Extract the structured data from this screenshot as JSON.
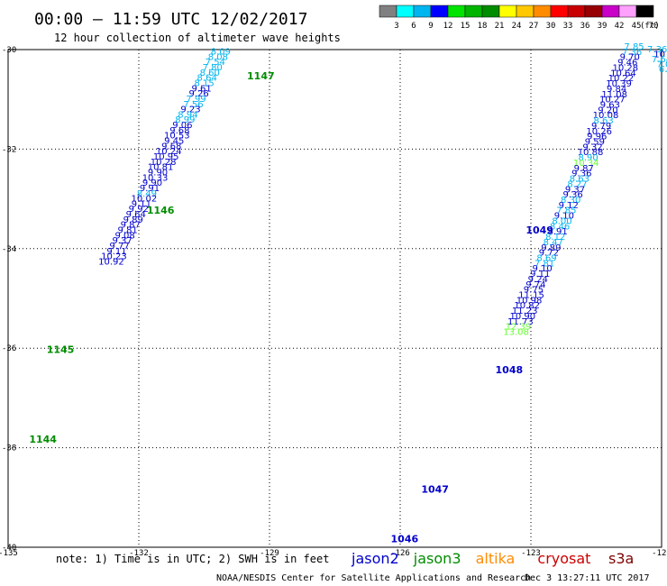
{
  "header": {
    "title": "00:00 – 11:59 UTC 12/02/2017",
    "subtitle": "12 hour collection of altimeter wave heights"
  },
  "legend": {
    "ticks": [
      "3",
      "6",
      "9",
      "12",
      "15",
      "18",
      "21",
      "24",
      "27",
      "30",
      "33",
      "36",
      "39",
      "42",
      "45",
      "70"
    ],
    "unit": "(ft)",
    "colors": [
      "#808080",
      "#00ffff",
      "#00b4f0",
      "#0000ff",
      "#00e400",
      "#00b400",
      "#008c00",
      "#ffff00",
      "#ffc800",
      "#ff8c00",
      "#ff0000",
      "#c80000",
      "#960000",
      "#c800c8",
      "#ffa0ff",
      "#000000"
    ]
  },
  "footer": {
    "note": "note: 1) Time is in UTC; 2) SWH is in feet",
    "missions": [
      {
        "name": "jason2",
        "color": "#0000cc"
      },
      {
        "name": "jason3",
        "color": "#008c00"
      },
      {
        "name": "altika",
        "color": "#ff8c00"
      },
      {
        "name": "cryosat",
        "color": "#cc0000"
      },
      {
        "name": "s3a",
        "color": "#800000"
      }
    ],
    "credit": "NOAA/NESDIS Center for Satellite Applications and Research",
    "timestamp": "Dec  3 13:27:11 UTC 2017"
  },
  "chart_data": {
    "type": "scatter",
    "xlim": [
      -135,
      -120
    ],
    "ylim": [
      -40,
      -30
    ],
    "x_ticks": [
      -135,
      -132,
      -129,
      -126,
      -123,
      -120
    ],
    "x_tick_labels": [
      "-135",
      "-132",
      "-129",
      "-126",
      "-123",
      "-120"
    ],
    "y_ticks": [
      -30,
      -32,
      -34,
      -36,
      -38,
      -40
    ],
    "y_tick_labels": [
      "-30",
      "-32",
      "-34",
      "-36",
      "-38",
      "-40"
    ],
    "grid": true,
    "colors": {
      "dark": "#0000cc",
      "light": "#00b4f0",
      "green": "#66ff33",
      "time": "#008c00",
      "time_j2": "#0000cc"
    },
    "tracks": [
      {
        "lat0": -30.1,
        "dlat": 0.1055,
        "lon0": -130.12,
        "dlon": -0.0628,
        "values": [
          "8.09",
          "8.08",
          "7.54",
          "7.80",
          "8.60",
          "8.64",
          "8.15",
          "9.61",
          "9.26",
          "7.99",
          "7.56",
          "9.23",
          "8.94",
          "8.99",
          "9.06",
          "9.68",
          "10.53",
          "9.45",
          "9.68",
          "10.24",
          "10.95",
          "10.28",
          "10.81",
          "9.90",
          "10.33",
          "9.90",
          "9.91",
          "8.49",
          "10.02",
          "9.11",
          "9.92",
          "9.64",
          "9.89",
          "9.87",
          "9.81",
          "9.08",
          "9.37",
          "9.77",
          "9.11",
          "10.23",
          "10.92"
        ],
        "value_colors": [
          "L",
          "L",
          "L",
          "L",
          "L",
          "L",
          "L",
          "D",
          "D",
          "L",
          "L",
          "D",
          "L",
          "L",
          "D",
          "D",
          "D",
          "D",
          "D",
          "D",
          "D",
          "D",
          "D",
          "D",
          "D",
          "D",
          "D",
          "L",
          "D",
          "D",
          "D",
          "D",
          "D",
          "D",
          "D",
          "D",
          "D",
          "D",
          "D",
          "D",
          "D"
        ],
        "times": [
          {
            "label": "1147",
            "lat": -30.6,
            "lon": -129.2
          },
          {
            "label": "1146",
            "lat": -33.3,
            "lon": -131.5
          },
          {
            "label": "1145",
            "lat": -36.1,
            "lon": -133.8
          },
          {
            "label": "1144",
            "lat": -37.9,
            "lon": -134.2
          }
        ]
      },
      {
        "lat0": -30.0,
        "dlat": 0.1062,
        "lon0": -120.63,
        "dlon": -0.0502,
        "values": [
          "7.85",
          "7.36",
          "9.70",
          "9.46",
          "10.28",
          "10.64",
          "10.22",
          "10.39",
          "9.84",
          "11.08",
          "10.27",
          "9.63",
          "9.20",
          "10.08",
          "8.63",
          "9.79",
          "10.26",
          "9.96",
          "9.59",
          "9.32",
          "10.88",
          "8.90",
          "10.34",
          "9.87",
          "9.36",
          "8.63",
          "8.27",
          "9.37",
          "9.36",
          "8.30",
          "9.12",
          "7.85",
          "9.10",
          "8.00",
          "8.46",
          "8.91",
          "8.12",
          "8.47",
          "9.89",
          "9.72",
          "8.69",
          "7.81",
          "9.10",
          "9.11",
          "9.24",
          "9.74",
          "9.75",
          "11.15",
          "10.98",
          "10.82",
          "11.23",
          "10.90",
          "11.73",
          "12.39",
          "13.08"
        ],
        "value_colors": [
          "L",
          "L",
          "D",
          "D",
          "D",
          "D",
          "D",
          "D",
          "D",
          "D",
          "D",
          "D",
          "D",
          "D",
          "L",
          "D",
          "D",
          "D",
          "D",
          "D",
          "D",
          "L",
          "G",
          "D",
          "D",
          "L",
          "L",
          "D",
          "D",
          "L",
          "D",
          "L",
          "D",
          "L",
          "L",
          "D",
          "L",
          "L",
          "D",
          "D",
          "L",
          "L",
          "D",
          "D",
          "D",
          "D",
          "D",
          "D",
          "D",
          "D",
          "D",
          "D",
          "D",
          "G",
          "G"
        ],
        "times": [
          {
            "label": "1049",
            "lat": -33.7,
            "lon": -122.8
          },
          {
            "label": "1048",
            "lat": -36.5,
            "lon": -123.5
          },
          {
            "label": "1047",
            "lat": -38.9,
            "lon": -125.2
          },
          {
            "label": "1046",
            "lat": -39.9,
            "lon": -125.9
          }
        ]
      },
      {
        "lat0": -30.05,
        "dlat": 0.1,
        "lon0": -120.1,
        "dlon": 0.05,
        "values": [
          "7.36",
          "10",
          "7.64",
          "7.0",
          "6.5",
          "7"
        ],
        "value_colors": [
          "L",
          "D",
          "L",
          "L",
          "L",
          "L"
        ],
        "times": []
      }
    ]
  }
}
